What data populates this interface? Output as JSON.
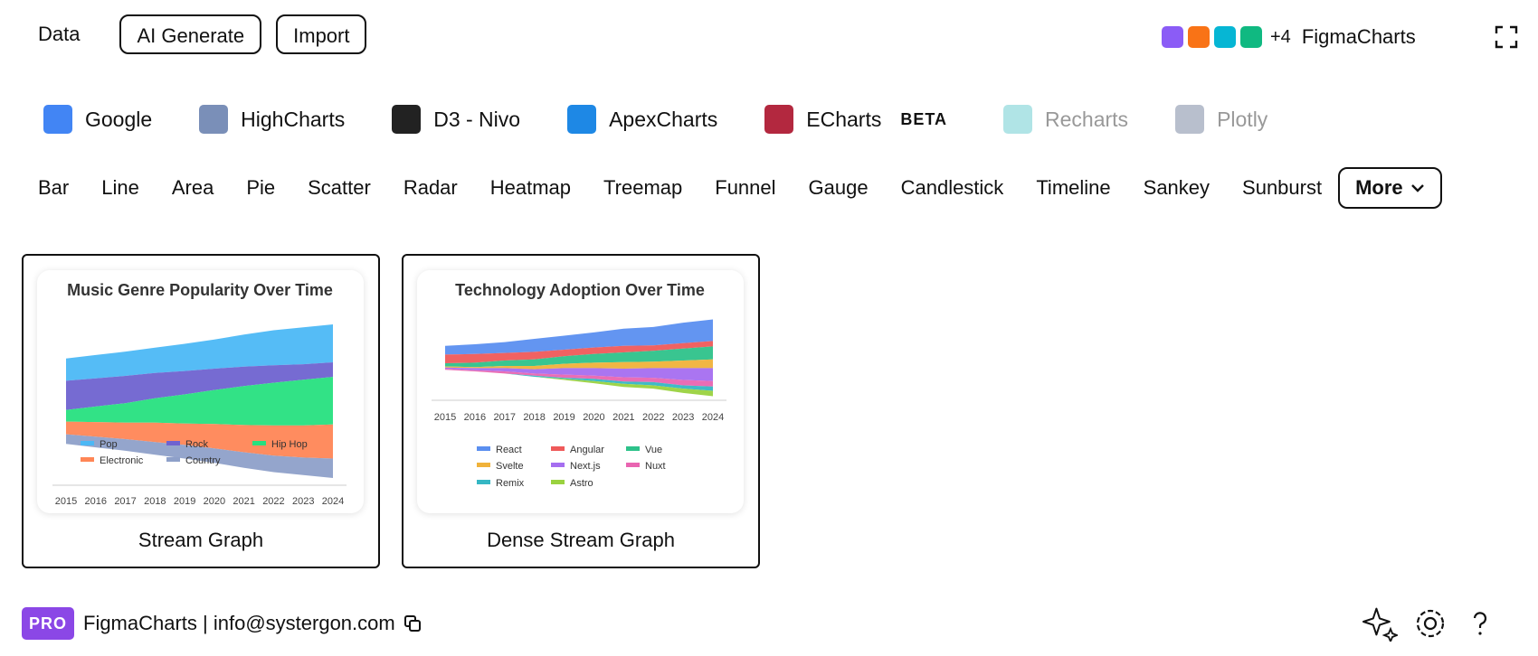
{
  "toolbar": {
    "tabs": [
      "Data",
      "AI Generate",
      "Import"
    ],
    "swatches": [
      "#8b5cf6",
      "#f97316",
      "#06b6d4",
      "#10b981"
    ],
    "extra": "+4",
    "brand": "FigmaCharts"
  },
  "libraries": [
    {
      "name": "Google",
      "color": "#4285f4",
      "muted": false
    },
    {
      "name": "HighCharts",
      "color": "#7a8fb8",
      "muted": false
    },
    {
      "name": "D3 - Nivo",
      "color": "#222222",
      "muted": false
    },
    {
      "name": "ApexCharts",
      "color": "#1e88e5",
      "muted": false
    },
    {
      "name": "ECharts",
      "color": "#b3283f",
      "muted": false,
      "badge": "BETA"
    },
    {
      "name": "Recharts",
      "color": "#8fd8dc",
      "muted": true
    },
    {
      "name": "Plotly",
      "color": "#9aa4b8",
      "muted": true
    }
  ],
  "chart_types": [
    "Bar",
    "Line",
    "Area",
    "Pie",
    "Scatter",
    "Radar",
    "Heatmap",
    "Treemap",
    "Funnel",
    "Gauge",
    "Candlestick",
    "Timeline",
    "Sankey",
    "Sunburst"
  ],
  "more": "More",
  "templates": [
    {
      "label": "Stream Graph",
      "chart_data": {
        "type": "stream",
        "title": "Music Genre Popularity Over Time",
        "categories": [
          "2015",
          "2016",
          "2017",
          "2018",
          "2019",
          "2020",
          "2021",
          "2022",
          "2023",
          "2024"
        ],
        "series": [
          {
            "name": "Pop",
            "color": "#4cb8f5",
            "values": [
              23,
              24,
              25,
              26,
              28,
              30,
              33,
              36,
              38,
              39
            ]
          },
          {
            "name": "Rock",
            "color": "#6f63d0",
            "values": [
              30,
              29,
              28,
              26,
              24,
              22,
              20,
              18,
              16,
              15
            ]
          },
          {
            "name": "Hip Hop",
            "color": "#27e07f",
            "values": [
              12,
              16,
              20,
              25,
              30,
              35,
              40,
              44,
              47,
              49
            ]
          },
          {
            "name": "Electronic",
            "color": "#ff8656",
            "values": [
              13,
              15,
              17,
              20,
              22,
              25,
              28,
              31,
              33,
              35
            ]
          },
          {
            "name": "Country",
            "color": "#8ea0c9",
            "values": [
              10,
              11,
              12,
              13,
              14,
              15,
              16,
              17,
              18,
              20
            ]
          }
        ]
      }
    },
    {
      "label": "Dense Stream Graph",
      "chart_data": {
        "type": "stream",
        "title": "Technology Adoption Over Time",
        "categories": [
          "2015",
          "2016",
          "2017",
          "2018",
          "2019",
          "2020",
          "2021",
          "2022",
          "2023",
          "2024"
        ],
        "series": [
          {
            "name": "React",
            "color": "#5b8ff0",
            "values": [
              8,
              9,
              10,
              12,
              13,
              14,
              16,
              17,
              19,
              20
            ]
          },
          {
            "name": "Angular",
            "color": "#ef5a5a",
            "values": [
              8,
              8,
              7,
              7,
              6,
              6,
              6,
              5,
              5,
              5
            ]
          },
          {
            "name": "Vue",
            "color": "#2ec28a",
            "values": [
              3,
              4,
              5,
              6,
              7,
              8,
              9,
              10,
              11,
              12
            ]
          },
          {
            "name": "Svelte",
            "color": "#f0b23a",
            "values": [
              1,
              1,
              2,
              3,
              4,
              5,
              6,
              6,
              7,
              8
            ]
          },
          {
            "name": "Next.js",
            "color": "#a56ef0",
            "values": [
              1,
              2,
              3,
              4,
              6,
              7,
              8,
              9,
              11,
              12
            ]
          },
          {
            "name": "Nuxt",
            "color": "#e965b1",
            "values": [
              1,
              1,
              2,
              2,
              3,
              3,
              4,
              4,
              5,
              5
            ]
          },
          {
            "name": "Remix",
            "color": "#35b7c4",
            "values": [
              0,
              0,
              0,
              1,
              1,
              2,
              2,
              3,
              3,
              4
            ]
          },
          {
            "name": "Astro",
            "color": "#9ad23f",
            "values": [
              0,
              0,
              0,
              0,
              1,
              2,
              3,
              3,
              4,
              5
            ]
          }
        ]
      }
    }
  ],
  "footer": {
    "badge": "PRO",
    "text": "FigmaCharts | info@systergon.com"
  }
}
